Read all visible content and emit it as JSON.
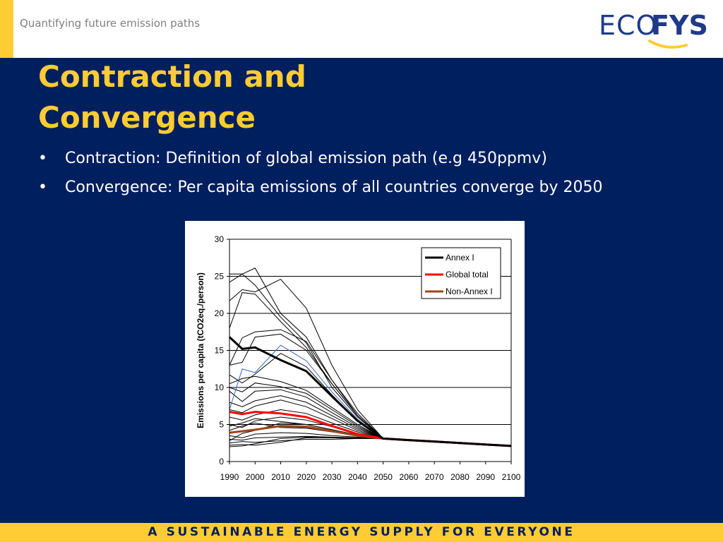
{
  "header": {
    "subtitle": "Quantifying future emission paths",
    "logo": {
      "part1": "ECO",
      "part2": "FYS",
      "brand_color": "#1f3a8a",
      "swoosh_color": "#ffcc33"
    }
  },
  "slide": {
    "title_line1": "Contraction and",
    "title_line2": "Convergence",
    "bullets": [
      {
        "marker": "•",
        "text": "Contraction: Definition of global emission path (e.g 450ppmv)"
      },
      {
        "marker": "•",
        "text": "Convergence: Per capita emissions of all countries converge by 2050"
      }
    ]
  },
  "footer": {
    "tagline": "A SUSTAINABLE ENERGY SUPPLY FOR EVERYONE"
  },
  "colors": {
    "background": "#001f5f",
    "accent": "#ffcc33",
    "annex_i": "#000000",
    "global_total": "#ff0000",
    "non_annex_i": "#a0441b",
    "countries": "#000000",
    "highlight_country": "#3366cc"
  },
  "chart_data": {
    "type": "line",
    "title": "",
    "xlabel": "",
    "ylabel": "Emissions per capita (tCO2eq./person)",
    "x": [
      1990,
      2000,
      2010,
      2020,
      2030,
      2040,
      2050,
      2060,
      2070,
      2080,
      2090,
      2100
    ],
    "x_tick_labels": [
      "1990",
      "2000",
      "2010",
      "2020",
      "2030",
      "2040",
      "2050",
      "2060",
      "2070",
      "2080",
      "2090",
      "2100"
    ],
    "ylim": [
      0,
      30
    ],
    "y_ticks": [
      0,
      5,
      10,
      15,
      20,
      25,
      30
    ],
    "grid": "horizontal",
    "legend_position": "top-right",
    "legend": [
      "Annex I",
      "Global total",
      "Non-Annex I"
    ],
    "series": [
      {
        "name": "Annex I",
        "color": "#000000",
        "width": 3,
        "points": [
          [
            1990,
            16.8
          ],
          [
            1995,
            15.2
          ],
          [
            2000,
            15.4
          ],
          [
            2010,
            13.7
          ],
          [
            2020,
            12.2
          ],
          [
            2030,
            8.8
          ],
          [
            2040,
            5.5
          ],
          [
            2050,
            3.1
          ],
          [
            2060,
            2.9
          ],
          [
            2070,
            2.7
          ],
          [
            2080,
            2.5
          ],
          [
            2090,
            2.3
          ],
          [
            2100,
            2.1
          ]
        ]
      },
      {
        "name": "Global total",
        "color": "#ff0000",
        "width": 3,
        "points": [
          [
            1990,
            6.7
          ],
          [
            1995,
            6.4
          ],
          [
            2000,
            6.7
          ],
          [
            2010,
            6.5
          ],
          [
            2020,
            6.0
          ],
          [
            2030,
            4.8
          ],
          [
            2040,
            3.7
          ],
          [
            2050,
            3.1
          ],
          [
            2060,
            2.9
          ],
          [
            2070,
            2.7
          ],
          [
            2080,
            2.5
          ],
          [
            2090,
            2.3
          ],
          [
            2100,
            2.1
          ]
        ]
      },
      {
        "name": "Non-Annex I",
        "color": "#a0441b",
        "width": 3,
        "points": [
          [
            1990,
            3.9
          ],
          [
            2000,
            4.3
          ],
          [
            2010,
            4.8
          ],
          [
            2020,
            4.7
          ],
          [
            2030,
            4.1
          ],
          [
            2040,
            3.5
          ],
          [
            2050,
            3.1
          ],
          [
            2060,
            2.9
          ],
          [
            2070,
            2.7
          ],
          [
            2080,
            2.5
          ],
          [
            2090,
            2.3
          ],
          [
            2100,
            2.1
          ]
        ]
      }
    ],
    "country_series": [
      {
        "points": [
          [
            1990,
            24.2
          ],
          [
            1995,
            25.3
          ],
          [
            2000,
            26.1
          ],
          [
            2010,
            20.0
          ],
          [
            2020,
            16.8
          ],
          [
            2030,
            11.0
          ],
          [
            2040,
            6.2
          ],
          [
            2050,
            3.1
          ]
        ]
      },
      {
        "points": [
          [
            1990,
            25.3
          ],
          [
            1995,
            25.3
          ],
          [
            2000,
            23.8
          ],
          [
            2010,
            19.5
          ],
          [
            2020,
            16.0
          ],
          [
            2030,
            10.0
          ],
          [
            2040,
            6.0
          ],
          [
            2050,
            3.1
          ]
        ]
      },
      {
        "points": [
          [
            1990,
            21.7
          ],
          [
            1995,
            23.2
          ],
          [
            2000,
            22.9
          ],
          [
            2010,
            24.6
          ],
          [
            2020,
            20.7
          ],
          [
            2030,
            13.0
          ],
          [
            2040,
            7.0
          ],
          [
            2050,
            3.1
          ]
        ]
      },
      {
        "points": [
          [
            1990,
            18.0
          ],
          [
            1995,
            22.8
          ],
          [
            2000,
            22.6
          ],
          [
            2010,
            18.9
          ],
          [
            2020,
            15.4
          ],
          [
            2030,
            10.5
          ],
          [
            2040,
            6.2
          ],
          [
            2050,
            3.1
          ]
        ]
      },
      {
        "points": [
          [
            1990,
            13.0
          ],
          [
            1995,
            16.7
          ],
          [
            2000,
            17.5
          ],
          [
            2010,
            17.8
          ],
          [
            2020,
            16.2
          ],
          [
            2030,
            11.0
          ],
          [
            2040,
            6.5
          ],
          [
            2050,
            3.1
          ]
        ]
      },
      {
        "points": [
          [
            1990,
            13.0
          ],
          [
            1995,
            13.4
          ],
          [
            2000,
            16.8
          ],
          [
            2010,
            17.2
          ],
          [
            2020,
            15.0
          ],
          [
            2030,
            10.5
          ],
          [
            2040,
            6.2
          ],
          [
            2050,
            3.1
          ]
        ]
      },
      {
        "points": [
          [
            1990,
            11.7
          ],
          [
            1995,
            10.6
          ],
          [
            2000,
            11.8
          ],
          [
            2010,
            14.6
          ],
          [
            2020,
            12.8
          ],
          [
            2030,
            9.0
          ],
          [
            2040,
            5.5
          ],
          [
            2050,
            3.1
          ]
        ]
      },
      {
        "points": [
          [
            1990,
            10.5
          ],
          [
            1995,
            11.2
          ],
          [
            2000,
            11.5
          ],
          [
            2010,
            10.8
          ],
          [
            2020,
            9.6
          ],
          [
            2030,
            7.3
          ],
          [
            2040,
            5.0
          ],
          [
            2050,
            3.1
          ]
        ]
      },
      {
        "points": [
          [
            1990,
            10.0
          ],
          [
            1995,
            9.4
          ],
          [
            2000,
            10.6
          ],
          [
            2010,
            10.1
          ],
          [
            2020,
            9.2
          ],
          [
            2030,
            7.0
          ],
          [
            2040,
            4.8
          ],
          [
            2050,
            3.1
          ]
        ]
      },
      {
        "points": [
          [
            1990,
            9.5
          ],
          [
            1995,
            8.1
          ],
          [
            2000,
            9.5
          ],
          [
            2010,
            9.7
          ],
          [
            2020,
            8.7
          ],
          [
            2030,
            6.6
          ],
          [
            2040,
            4.6
          ],
          [
            2050,
            3.1
          ]
        ]
      },
      {
        "points": [
          [
            1990,
            8.0
          ],
          [
            1995,
            7.4
          ],
          [
            2000,
            8.2
          ],
          [
            2010,
            8.9
          ],
          [
            2020,
            8.0
          ],
          [
            2030,
            6.2
          ],
          [
            2040,
            4.4
          ],
          [
            2050,
            3.1
          ]
        ]
      },
      {
        "points": [
          [
            1990,
            7.0
          ],
          [
            1995,
            6.6
          ],
          [
            2000,
            7.5
          ],
          [
            2010,
            8.3
          ],
          [
            2020,
            7.4
          ],
          [
            2030,
            5.8
          ],
          [
            2040,
            4.2
          ],
          [
            2050,
            3.1
          ]
        ]
      },
      {
        "points": [
          [
            1990,
            6.0
          ],
          [
            1995,
            5.6
          ],
          [
            2000,
            6.3
          ],
          [
            2010,
            7.0
          ],
          [
            2020,
            6.5
          ],
          [
            2030,
            5.2
          ],
          [
            2040,
            4.0
          ],
          [
            2050,
            3.1
          ]
        ]
      },
      {
        "points": [
          [
            1990,
            5.0
          ],
          [
            1995,
            4.6
          ],
          [
            2000,
            5.5
          ],
          [
            2010,
            6.0
          ],
          [
            2020,
            5.6
          ],
          [
            2030,
            4.7
          ],
          [
            2040,
            3.8
          ],
          [
            2050,
            3.1
          ]
        ]
      },
      {
        "points": [
          [
            1990,
            4.8
          ],
          [
            1995,
            5.2
          ],
          [
            2000,
            5.8
          ],
          [
            2010,
            5.4
          ],
          [
            2020,
            5.0
          ],
          [
            2030,
            4.3
          ],
          [
            2040,
            3.6
          ],
          [
            2050,
            3.1
          ]
        ]
      },
      {
        "points": [
          [
            1990,
            3.5
          ],
          [
            1995,
            3.2
          ],
          [
            2000,
            3.7
          ],
          [
            2010,
            3.9
          ],
          [
            2020,
            3.8
          ],
          [
            2030,
            3.5
          ],
          [
            2040,
            3.3
          ],
          [
            2050,
            3.1
          ]
        ]
      },
      {
        "points": [
          [
            1990,
            3.0
          ],
          [
            1995,
            2.9
          ],
          [
            2000,
            3.2
          ],
          [
            2010,
            3.3
          ],
          [
            2020,
            3.4
          ],
          [
            2030,
            3.3
          ],
          [
            2040,
            3.2
          ],
          [
            2050,
            3.1
          ]
        ]
      },
      {
        "points": [
          [
            1990,
            2.5
          ],
          [
            1995,
            2.7
          ],
          [
            2000,
            2.6
          ],
          [
            2010,
            2.8
          ],
          [
            2020,
            3.0
          ],
          [
            2030,
            3.0
          ],
          [
            2040,
            3.1
          ],
          [
            2050,
            3.1
          ]
        ]
      },
      {
        "points": [
          [
            1990,
            2.2
          ],
          [
            1995,
            2.3
          ],
          [
            2000,
            2.2
          ],
          [
            2010,
            2.6
          ],
          [
            2020,
            3.2
          ],
          [
            2030,
            3.2
          ],
          [
            2040,
            3.1
          ],
          [
            2050,
            3.1
          ]
        ]
      },
      {
        "points": [
          [
            1990,
            2.0
          ],
          [
            1995,
            2.1
          ],
          [
            2000,
            2.4
          ],
          [
            2010,
            3.1
          ],
          [
            2020,
            3.3
          ],
          [
            2030,
            3.2
          ],
          [
            2040,
            3.1
          ],
          [
            2050,
            3.1
          ]
        ]
      },
      {
        "points": [
          [
            1990,
            2.8
          ],
          [
            1995,
            3.8
          ],
          [
            2000,
            4.2
          ],
          [
            2010,
            5.2
          ],
          [
            2020,
            5.0
          ],
          [
            2030,
            4.3
          ],
          [
            2040,
            3.6
          ],
          [
            2050,
            3.1
          ]
        ]
      },
      {
        "points": [
          [
            1990,
            4.2
          ],
          [
            1995,
            4.8
          ],
          [
            2000,
            5.2
          ],
          [
            2010,
            4.6
          ],
          [
            2020,
            4.5
          ],
          [
            2030,
            4.0
          ],
          [
            2040,
            3.5
          ],
          [
            2050,
            3.1
          ]
        ]
      }
    ],
    "highlight_series": [
      {
        "points": [
          [
            1990,
            7.0
          ],
          [
            1995,
            12.5
          ],
          [
            2000,
            12.0
          ],
          [
            2010,
            15.7
          ],
          [
            2020,
            13.6
          ],
          [
            2030,
            9.4
          ],
          [
            2040,
            5.7
          ],
          [
            2050,
            3.1
          ]
        ]
      }
    ]
  }
}
